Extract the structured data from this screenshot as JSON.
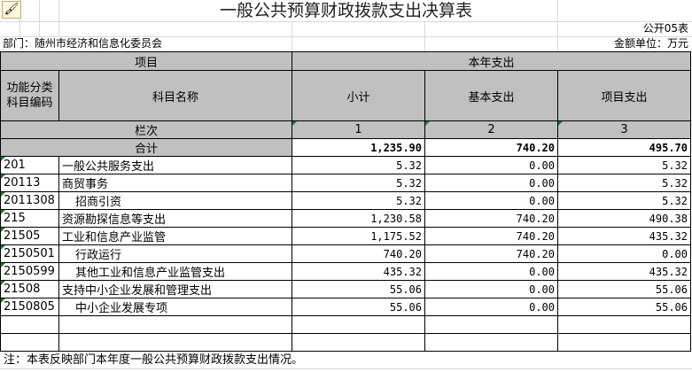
{
  "title": "一般公共预算财政拨款支出决算表",
  "form_no": "公开05表",
  "department": "部门：随州市经济和信息化委员会",
  "unit": "金额单位：万元",
  "header": {
    "item": "项目",
    "year_expense": "本年支出",
    "code": "功能分类科目编码",
    "name": "科目名称",
    "subtotal": "小计",
    "basic": "基本支出",
    "project": "项目支出",
    "col_index": "栏次",
    "col1": "1",
    "col2": "2",
    "col3": "3",
    "total_label": "合计"
  },
  "total": {
    "subtotal": "1,235.90",
    "basic": "740.20",
    "project": "495.70"
  },
  "rows": [
    {
      "code": "201",
      "name": "一般公共服务支出",
      "indent": false,
      "subtotal": "5.32",
      "basic": "0.00",
      "project": "5.32"
    },
    {
      "code": "20113",
      "name": "商贸事务",
      "indent": false,
      "subtotal": "5.32",
      "basic": "0.00",
      "project": "5.32"
    },
    {
      "code": "2011308",
      "name": "招商引资",
      "indent": true,
      "subtotal": "5.32",
      "basic": "0.00",
      "project": "5.32"
    },
    {
      "code": "215",
      "name": "资源勘探信息等支出",
      "indent": false,
      "subtotal": "1,230.58",
      "basic": "740.20",
      "project": "490.38"
    },
    {
      "code": "21505",
      "name": "工业和信息产业监管",
      "indent": false,
      "subtotal": "1,175.52",
      "basic": "740.20",
      "project": "435.32"
    },
    {
      "code": "2150501",
      "name": "行政运行",
      "indent": true,
      "subtotal": "740.20",
      "basic": "740.20",
      "project": "0.00"
    },
    {
      "code": "2150599",
      "name": "其他工业和信息产业监管支出",
      "indent": true,
      "subtotal": "435.32",
      "basic": "0.00",
      "project": "435.32"
    },
    {
      "code": "21508",
      "name": "支持中小企业发展和管理支出",
      "indent": false,
      "subtotal": "55.06",
      "basic": "0.00",
      "project": "55.06"
    },
    {
      "code": "2150805",
      "name": "中小企业发展专项",
      "indent": true,
      "subtotal": "55.06",
      "basic": "0.00",
      "project": "55.06"
    }
  ],
  "footnote": "注：本表反映部门本年度一般公共预算财政拨款支出情况。"
}
